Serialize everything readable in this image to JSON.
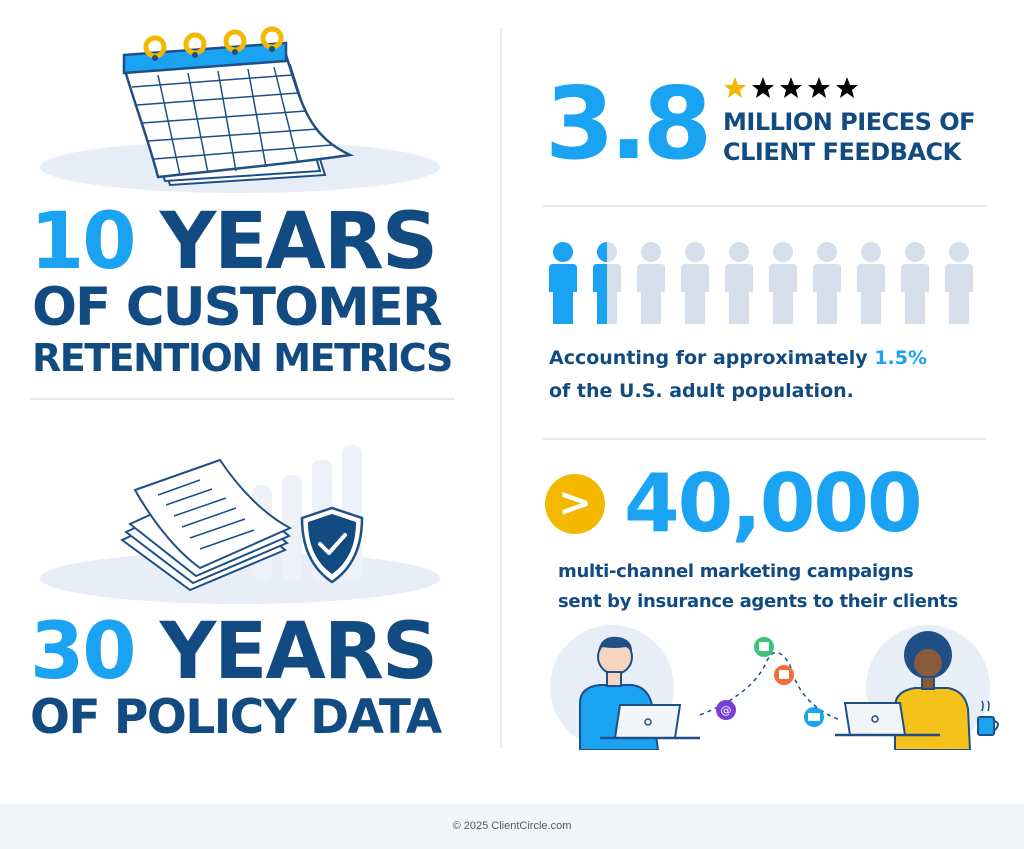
{
  "left": {
    "block1": {
      "number": "10",
      "line1_rest": "YEARS",
      "line2": "OF CUSTOMER",
      "line3": "RETENTION METRICS"
    },
    "block2": {
      "number": "30",
      "line1_rest": "YEARS",
      "line2": "OF POLICY DATA"
    }
  },
  "right": {
    "feedback": {
      "number": "3.8",
      "line1": "MILLION PIECES OF",
      "line2": "CLIENT FEEDBACK",
      "stars": 5
    },
    "population": {
      "text_before": "Accounting for approximately",
      "percent": "1.5%",
      "line2": "of the U.S. adult population.",
      "filled_fraction": 0.15
    },
    "campaigns": {
      "symbol": ">",
      "number": "40,000",
      "line1": "multi-channel marketing campaigns",
      "line2": "sent by insurance agents to their clients"
    }
  },
  "footer": {
    "copyright": "© 2025 ClientCircle.com"
  },
  "colors": {
    "navy": "#124a82",
    "accent_blue": "#1aa3f2",
    "star_yellow": "#f5b800",
    "person_gray": "#d4dfeb",
    "divider": "#e3e9f2"
  },
  "icons": [
    "calendar-icon",
    "shield-check-icon",
    "document-stack-icon",
    "star-icon",
    "person-icon",
    "chevron-right-icon",
    "laptop-icon",
    "email-icon",
    "chat-icon",
    "at-icon",
    "coffee-cup-icon"
  ]
}
